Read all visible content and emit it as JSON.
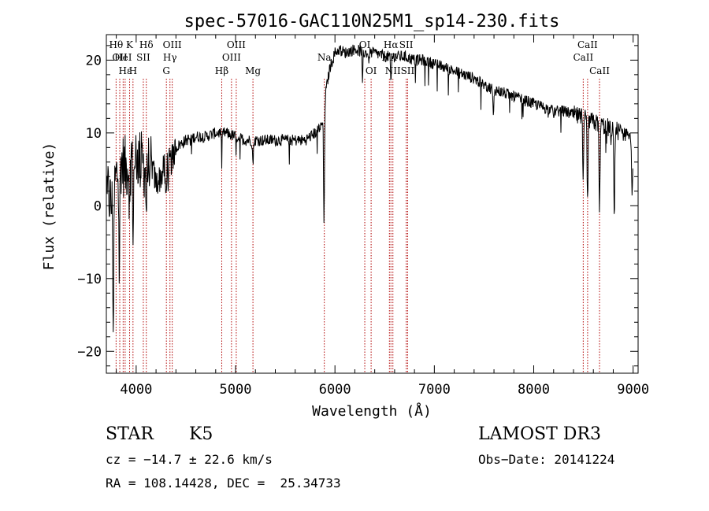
{
  "chart_data": {
    "type": "line",
    "title": "spec-57016-GAC110N25M1_sp14-230.fits",
    "xlabel": "Wavelength (Å)",
    "ylabel": "Flux (relative)",
    "xlim": [
      3700,
      9050
    ],
    "ylim": [
      -23,
      23.5
    ],
    "xticks": [
      4000,
      5000,
      6000,
      7000,
      8000,
      9000
    ],
    "xtick_labels": [
      "4000",
      "5000",
      "6000",
      "7000",
      "8000",
      "9000"
    ],
    "yticks": [
      -20,
      -10,
      0,
      10,
      20
    ],
    "ytick_labels": [
      "−20",
      "−10",
      "0",
      "10",
      "20"
    ],
    "grid": false,
    "spectrum_anchors": {
      "x": [
        3700,
        3750,
        3800,
        3850,
        3900,
        3950,
        4000,
        4050,
        4100,
        4150,
        4200,
        4250,
        4300,
        4350,
        4400,
        4500,
        4600,
        4700,
        4800,
        4900,
        5000,
        5100,
        5200,
        5300,
        5400,
        5500,
        5600,
        5700,
        5800,
        5870,
        5890,
        5900,
        5950,
        6000,
        6050,
        6100,
        6200,
        6300,
        6400,
        6500,
        6600,
        6700,
        6800,
        6900,
        7000,
        7100,
        7200,
        7300,
        7400,
        7500,
        7600,
        7700,
        7800,
        7900,
        8000,
        8100,
        8200,
        8300,
        8400,
        8500,
        8600,
        8700,
        8800,
        8900,
        9000
      ],
      "y": [
        3,
        0,
        4,
        6,
        5,
        7,
        7,
        6,
        5,
        6,
        3,
        4,
        6,
        6,
        8,
        9,
        9.5,
        9.5,
        10,
        10,
        9.5,
        9,
        9,
        9,
        9,
        9,
        9,
        9,
        10,
        11,
        14,
        15,
        19,
        21,
        21.5,
        21,
        21.5,
        21,
        21,
        20.5,
        20.5,
        20.5,
        20,
        20,
        19.5,
        19,
        18.5,
        18,
        17.5,
        16.5,
        16,
        15.5,
        15,
        14.5,
        14,
        13.5,
        13,
        13,
        12.5,
        12,
        11.5,
        11,
        10.5,
        10,
        10
      ]
    },
    "absorption_dips": [
      {
        "x": 3770,
        "y": -16
      },
      {
        "x": 3830,
        "y": -9
      },
      {
        "x": 3935,
        "y": -1
      },
      {
        "x": 3970,
        "y": -3
      },
      {
        "x": 4102,
        "y": 0
      },
      {
        "x": 4300,
        "y": 1
      },
      {
        "x": 4861,
        "y": 8
      },
      {
        "x": 5175,
        "y": 6
      },
      {
        "x": 5890,
        "y": -2.5
      },
      {
        "x": 6563,
        "y": 17
      },
      {
        "x": 7594,
        "y": 12
      },
      {
        "x": 8498,
        "y": 3
      },
      {
        "x": 8542,
        "y": 0
      },
      {
        "x": 8662,
        "y": -1
      },
      {
        "x": 8810,
        "y": -1.5
      },
      {
        "x": 8990,
        "y": 0
      }
    ],
    "line_markers": [
      {
        "x": 3798,
        "label": "Hθ",
        "row": 0
      },
      {
        "x": 3835,
        "label": "OII",
        "row": 1
      },
      {
        "x": 3889,
        "label": "Hε",
        "row": 2
      },
      {
        "x": 3869,
        "label": "HeI",
        "row": 1
      },
      {
        "x": 3934,
        "label": "K",
        "row": 0
      },
      {
        "x": 3968,
        "label": "H",
        "row": 2
      },
      {
        "x": 4072,
        "label": "SII",
        "row": 1
      },
      {
        "x": 4102,
        "label": "Hδ",
        "row": 0
      },
      {
        "x": 4340,
        "label": "Hγ",
        "row": 1
      },
      {
        "x": 4304,
        "label": "G",
        "row": 2
      },
      {
        "x": 4363,
        "label": "OIII",
        "row": 0
      },
      {
        "x": 4861,
        "label": "Hβ",
        "row": 2
      },
      {
        "x": 4959,
        "label": "OIII",
        "row": 1
      },
      {
        "x": 5007,
        "label": "OIII",
        "row": 0
      },
      {
        "x": 5175,
        "label": "Mg",
        "row": 2
      },
      {
        "x": 5893,
        "label": "Na",
        "row": 1
      },
      {
        "x": 6300,
        "label": "OI",
        "row": 0
      },
      {
        "x": 6364,
        "label": "OI",
        "row": 2
      },
      {
        "x": 6548,
        "label": "NII",
        "row": 1
      },
      {
        "x": 6563,
        "label": "Hα",
        "row": 0
      },
      {
        "x": 6583,
        "label": "NII",
        "row": 2
      },
      {
        "x": 6717,
        "label": "SII",
        "row": 0
      },
      {
        "x": 6731,
        "label": "SII",
        "row": 2
      },
      {
        "x": 8498,
        "label": "CaII",
        "row": 1
      },
      {
        "x": 8542,
        "label": "CaII",
        "row": 0
      },
      {
        "x": 8662,
        "label": "CaII",
        "row": 2
      }
    ]
  },
  "info": {
    "class": "STAR",
    "subclass": "K5",
    "survey": "LAMOST DR3",
    "cz": "cz = −14.7 ± 22.6 km/s",
    "obs_date": "Obs−Date: 20141224",
    "radec": "RA = 108.14428, DEC =  25.34733"
  }
}
